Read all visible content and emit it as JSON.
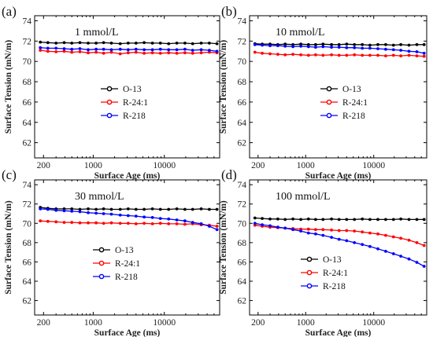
{
  "chart_data": [
    {
      "type": "line",
      "panel_label": "(a)",
      "annotation": "1 mmol/L",
      "xlabel": "Surface Age (ms)",
      "ylabel": "Surface Tension (mN/m)",
      "xscale": "log",
      "xlim": [
        150,
        60000
      ],
      "ylim": [
        60.5,
        74.5
      ],
      "xticks": [
        200,
        1000,
        10000
      ],
      "xtick_labels": [
        "200",
        "1000",
        "10000"
      ],
      "yticks": [
        62,
        64,
        66,
        68,
        70,
        72,
        74
      ],
      "legend_position": "middle-left",
      "colors": {
        "O-13": "#000000",
        "R-24:1": "#ff0000",
        "R-218": "#0000ff"
      },
      "x": [
        180,
        230,
        300,
        390,
        500,
        650,
        850,
        1100,
        1400,
        1800,
        2400,
        3100,
        4000,
        5200,
        6800,
        8800,
        11500,
        15000,
        19500,
        25000,
        33000,
        43000,
        55000
      ],
      "series": [
        {
          "name": "O-13",
          "values": [
            71.9,
            71.85,
            71.8,
            71.85,
            71.8,
            71.85,
            71.8,
            71.8,
            71.85,
            71.8,
            71.75,
            71.8,
            71.8,
            71.85,
            71.8,
            71.8,
            71.75,
            71.8,
            71.8,
            71.75,
            71.8,
            71.8,
            71.75
          ]
        },
        {
          "name": "R-24:1",
          "values": [
            71.1,
            71.0,
            70.95,
            71.0,
            70.9,
            70.95,
            70.85,
            70.9,
            70.8,
            70.9,
            70.75,
            70.85,
            70.9,
            70.8,
            70.85,
            70.8,
            70.85,
            70.8,
            70.85,
            70.8,
            70.85,
            70.9,
            70.85
          ]
        },
        {
          "name": "R-218",
          "values": [
            71.35,
            71.3,
            71.3,
            71.25,
            71.2,
            71.25,
            71.15,
            71.2,
            71.2,
            71.15,
            71.2,
            71.15,
            71.2,
            71.15,
            71.15,
            71.2,
            71.15,
            71.15,
            71.2,
            71.1,
            71.15,
            71.1,
            71.0
          ]
        }
      ]
    },
    {
      "type": "line",
      "panel_label": "(b)",
      "annotation": "10 mmol/L",
      "xlabel": "Surface Age (ms)",
      "ylabel": "Surface Tension (mN/m)",
      "xscale": "log",
      "xlim": [
        150,
        60000
      ],
      "ylim": [
        60.5,
        74.5
      ],
      "xticks": [
        200,
        1000,
        10000
      ],
      "xtick_labels": [
        "200",
        "1000",
        "10000"
      ],
      "yticks": [
        62,
        64,
        66,
        68,
        70,
        72,
        74
      ],
      "legend_position": "middle-right",
      "colors": {
        "O-13": "#000000",
        "R-24:1": "#ff0000",
        "R-218": "#0000ff"
      },
      "x": [
        180,
        230,
        300,
        390,
        500,
        650,
        850,
        1100,
        1400,
        1800,
        2400,
        3100,
        4000,
        5200,
        6800,
        8800,
        11500,
        15000,
        19500,
        25000,
        33000,
        43000,
        55000
      ],
      "series": [
        {
          "name": "O-13",
          "values": [
            71.75,
            71.7,
            71.7,
            71.65,
            71.7,
            71.65,
            71.7,
            71.65,
            71.65,
            71.7,
            71.65,
            71.65,
            71.7,
            71.65,
            71.65,
            71.6,
            71.65,
            71.65,
            71.6,
            71.65,
            71.6,
            71.65,
            71.65
          ]
        },
        {
          "name": "R-24:1",
          "values": [
            70.9,
            70.8,
            70.75,
            70.7,
            70.65,
            70.7,
            70.65,
            70.6,
            70.65,
            70.6,
            70.65,
            70.6,
            70.6,
            70.65,
            70.6,
            70.6,
            70.6,
            70.55,
            70.6,
            70.55,
            70.6,
            70.55,
            70.5
          ]
        },
        {
          "name": "R-218",
          "values": [
            71.65,
            71.6,
            71.55,
            71.55,
            71.5,
            71.45,
            71.5,
            71.45,
            71.4,
            71.45,
            71.4,
            71.4,
            71.35,
            71.35,
            71.3,
            71.3,
            71.25,
            71.2,
            71.15,
            71.1,
            71.0,
            70.95,
            70.8
          ]
        }
      ]
    },
    {
      "type": "line",
      "panel_label": "(c)",
      "annotation": "30 mmol/L",
      "xlabel": "Surface Age (ms)",
      "ylabel": "Surface Tension (mN/m)",
      "xscale": "log",
      "xlim": [
        150,
        60000
      ],
      "ylim": [
        60.5,
        74.5
      ],
      "xticks": [
        200,
        1000,
        10000
      ],
      "xtick_labels": [
        "200",
        "1000",
        "10000"
      ],
      "yticks": [
        62,
        64,
        66,
        68,
        70,
        72,
        74
      ],
      "legend_position": "middle-center",
      "colors": {
        "O-13": "#000000",
        "R-24:1": "#ff0000",
        "R-218": "#0000ff"
      },
      "x": [
        180,
        230,
        300,
        390,
        500,
        650,
        850,
        1100,
        1400,
        1800,
        2400,
        3100,
        4000,
        5200,
        6800,
        8800,
        11500,
        15000,
        19500,
        25000,
        33000,
        43000,
        55000
      ],
      "series": [
        {
          "name": "O-13",
          "values": [
            71.65,
            71.55,
            71.5,
            71.5,
            71.5,
            71.45,
            71.5,
            71.45,
            71.5,
            71.45,
            71.45,
            71.5,
            71.45,
            71.45,
            71.5,
            71.45,
            71.45,
            71.5,
            71.45,
            71.45,
            71.5,
            71.45,
            71.45
          ]
        },
        {
          "name": "R-24:1",
          "values": [
            70.25,
            70.2,
            70.15,
            70.1,
            70.1,
            70.05,
            70.05,
            70.05,
            70.0,
            70.05,
            70.0,
            70.0,
            69.95,
            70.0,
            69.95,
            70.0,
            69.95,
            69.95,
            69.9,
            69.95,
            69.85,
            69.8,
            69.7
          ]
        },
        {
          "name": "R-218",
          "values": [
            71.5,
            71.45,
            71.35,
            71.3,
            71.25,
            71.2,
            71.1,
            71.05,
            71.0,
            70.95,
            70.85,
            70.8,
            70.75,
            70.65,
            70.6,
            70.5,
            70.45,
            70.35,
            70.25,
            70.1,
            69.95,
            69.7,
            69.35
          ]
        }
      ]
    },
    {
      "type": "line",
      "panel_label": "(d)",
      "annotation": "100 mmol/L",
      "xlabel": "Surface Age (ms)",
      "ylabel": "Surface Tension (mN/m)",
      "xscale": "log",
      "xlim": [
        150,
        60000
      ],
      "ylim": [
        60.5,
        74.5
      ],
      "xticks": [
        200,
        1000,
        10000
      ],
      "xtick_labels": [
        "200",
        "1000",
        "10000"
      ],
      "yticks": [
        62,
        64,
        66,
        68,
        70,
        72,
        74
      ],
      "legend_position": "middle-left",
      "colors": {
        "O-13": "#000000",
        "R-24:1": "#ff0000",
        "R-218": "#0000ff"
      },
      "x": [
        180,
        230,
        300,
        390,
        500,
        650,
        850,
        1100,
        1400,
        1800,
        2400,
        3100,
        4000,
        5200,
        6800,
        8800,
        11500,
        15000,
        19500,
        25000,
        33000,
        43000,
        55000
      ],
      "series": [
        {
          "name": "O-13",
          "values": [
            70.55,
            70.5,
            70.45,
            70.45,
            70.4,
            70.45,
            70.4,
            70.45,
            70.4,
            70.4,
            70.45,
            70.4,
            70.4,
            70.4,
            70.45,
            70.4,
            70.4,
            70.4,
            70.4,
            70.45,
            70.4,
            70.4,
            70.4
          ]
        },
        {
          "name": "R-24:1",
          "values": [
            69.8,
            69.7,
            69.6,
            69.55,
            69.5,
            69.45,
            69.4,
            69.4,
            69.35,
            69.35,
            69.3,
            69.25,
            69.25,
            69.2,
            69.1,
            69.0,
            68.9,
            68.75,
            68.6,
            68.45,
            68.25,
            68.0,
            67.7
          ]
        },
        {
          "name": "R-218",
          "values": [
            70.0,
            69.85,
            69.75,
            69.6,
            69.5,
            69.35,
            69.2,
            69.0,
            68.9,
            68.75,
            68.55,
            68.35,
            68.2,
            68.0,
            67.8,
            67.6,
            67.35,
            67.1,
            66.85,
            66.6,
            66.3,
            65.95,
            65.55
          ]
        }
      ]
    }
  ]
}
